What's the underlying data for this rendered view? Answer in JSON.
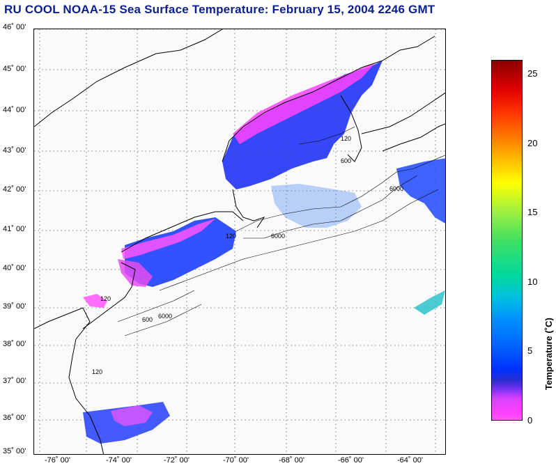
{
  "title": "RU COOL  NOAA-15  Sea Surface Temperature:  February 15, 2004 2246 GMT",
  "latitude_labels": [
    "46˚ 00'",
    "45˚ 00'",
    "44˚ 00'",
    "43˚ 00'",
    "42˚ 00'",
    "41˚ 00'",
    "40˚ 00'",
    "39˚ 00'",
    "38˚ 00'",
    "37˚ 00'",
    "36˚ 00'",
    "35˚ 00'"
  ],
  "longitude_labels": [
    "-76˚ 00'",
    "-74˚ 00'",
    "-72˚ 00'",
    "-70˚ 00'",
    "-68˚ 00'",
    "-66˚ 00'",
    "-64˚ 00'"
  ],
  "bathymetry_labels": [
    "120",
    "600",
    "6000"
  ],
  "colorbar": {
    "label": "Temperature (˚C)",
    "ticks": [
      "25",
      "20",
      "15",
      "10",
      "5",
      "0"
    ],
    "min": 0,
    "max": 26
  },
  "colors": {
    "title": "#0b1f8f",
    "cold": "#ff33ff",
    "blue": "#1f3bff",
    "warm": "#8b0000"
  }
}
